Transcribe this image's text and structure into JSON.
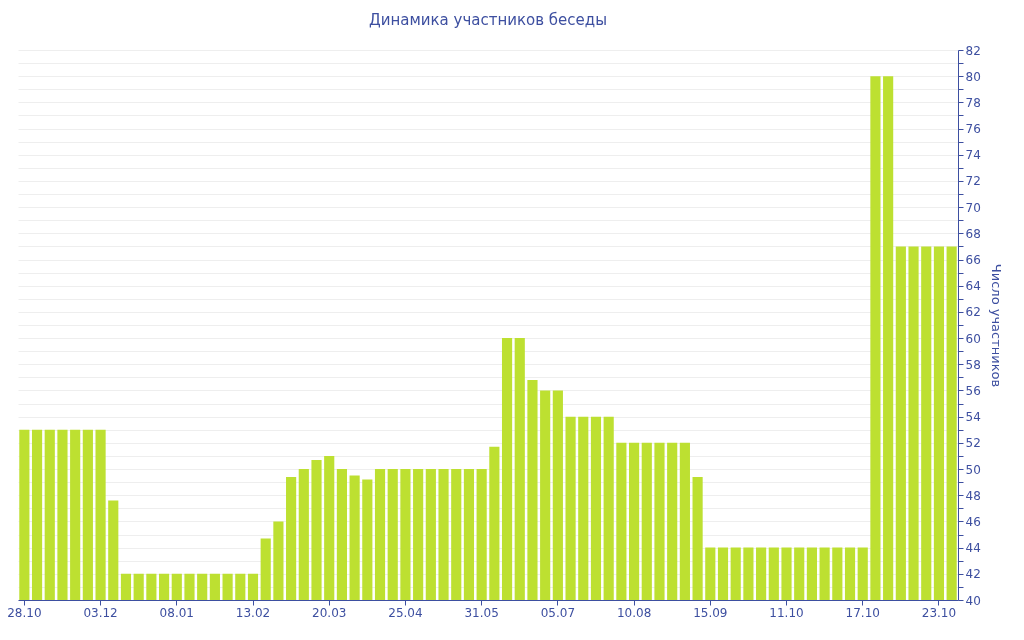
{
  "chart_data": {
    "type": "bar",
    "title": "Динамика участников беседы",
    "ylabel": "Число участников",
    "categories": [
      "28.10",
      null,
      null,
      null,
      null,
      null,
      "03.12",
      null,
      null,
      null,
      null,
      null,
      "08.01",
      null,
      null,
      null,
      null,
      null,
      "13.02",
      null,
      null,
      null,
      null,
      null,
      "20.03",
      null,
      null,
      null,
      null,
      null,
      "25.04",
      null,
      null,
      null,
      null,
      null,
      "31.05",
      null,
      null,
      null,
      null,
      null,
      "05.07",
      null,
      null,
      null,
      null,
      null,
      "10.08",
      null,
      null,
      null,
      null,
      null,
      "15.09",
      null,
      null,
      null,
      null,
      null,
      "11.10",
      null,
      null,
      null,
      null,
      null,
      "17.10",
      null,
      null,
      null,
      null,
      null,
      "23.10",
      null
    ],
    "values": [
      53,
      53,
      53,
      53,
      53,
      53,
      53,
      47.6,
      42,
      42,
      42,
      42,
      42,
      42,
      42,
      42,
      42,
      42,
      42,
      44.7,
      46,
      49.4,
      50,
      50.7,
      51,
      50,
      49.5,
      49.2,
      50,
      50,
      50,
      50,
      50,
      50,
      50,
      50,
      50,
      51.7,
      60,
      60,
      56.8,
      56,
      56,
      54,
      54,
      54,
      54,
      52,
      52,
      52,
      52,
      52,
      52,
      49.4,
      44,
      44,
      44,
      44,
      44,
      44,
      44,
      44,
      44,
      44,
      44,
      44,
      44,
      80,
      80,
      67,
      67,
      67,
      67,
      67
    ],
    "color": "#bde031",
    "ylim": [
      40,
      82
    ],
    "yticks": [
      40,
      {
        "value": 41,
        "label": null
      },
      42,
      {
        "value": 43,
        "label": null
      },
      44,
      {
        "value": 45,
        "label": null
      },
      46,
      {
        "value": 47,
        "label": null
      },
      48,
      {
        "value": 49,
        "label": null
      },
      50,
      {
        "value": 51,
        "label": null
      },
      52,
      {
        "value": 53,
        "label": null
      },
      54,
      {
        "value": 55,
        "label": null
      },
      56,
      {
        "value": 57,
        "label": null
      },
      58,
      {
        "value": 59,
        "label": null
      },
      60,
      {
        "value": 61,
        "label": null
      },
      62,
      {
        "value": 63,
        "label": null
      },
      64,
      {
        "value": 65,
        "label": null
      },
      66,
      {
        "value": 67,
        "label": null
      },
      68,
      {
        "value": 69,
        "label": null
      },
      70,
      {
        "value": 71,
        "label": null
      },
      72,
      {
        "value": 73,
        "label": null
      },
      74,
      {
        "value": 75,
        "label": null
      },
      76,
      {
        "value": 77,
        "label": null
      },
      78,
      {
        "value": 79,
        "label": null
      },
      80,
      {
        "value": 81,
        "label": null
      },
      82
    ],
    "grid": "y"
  }
}
